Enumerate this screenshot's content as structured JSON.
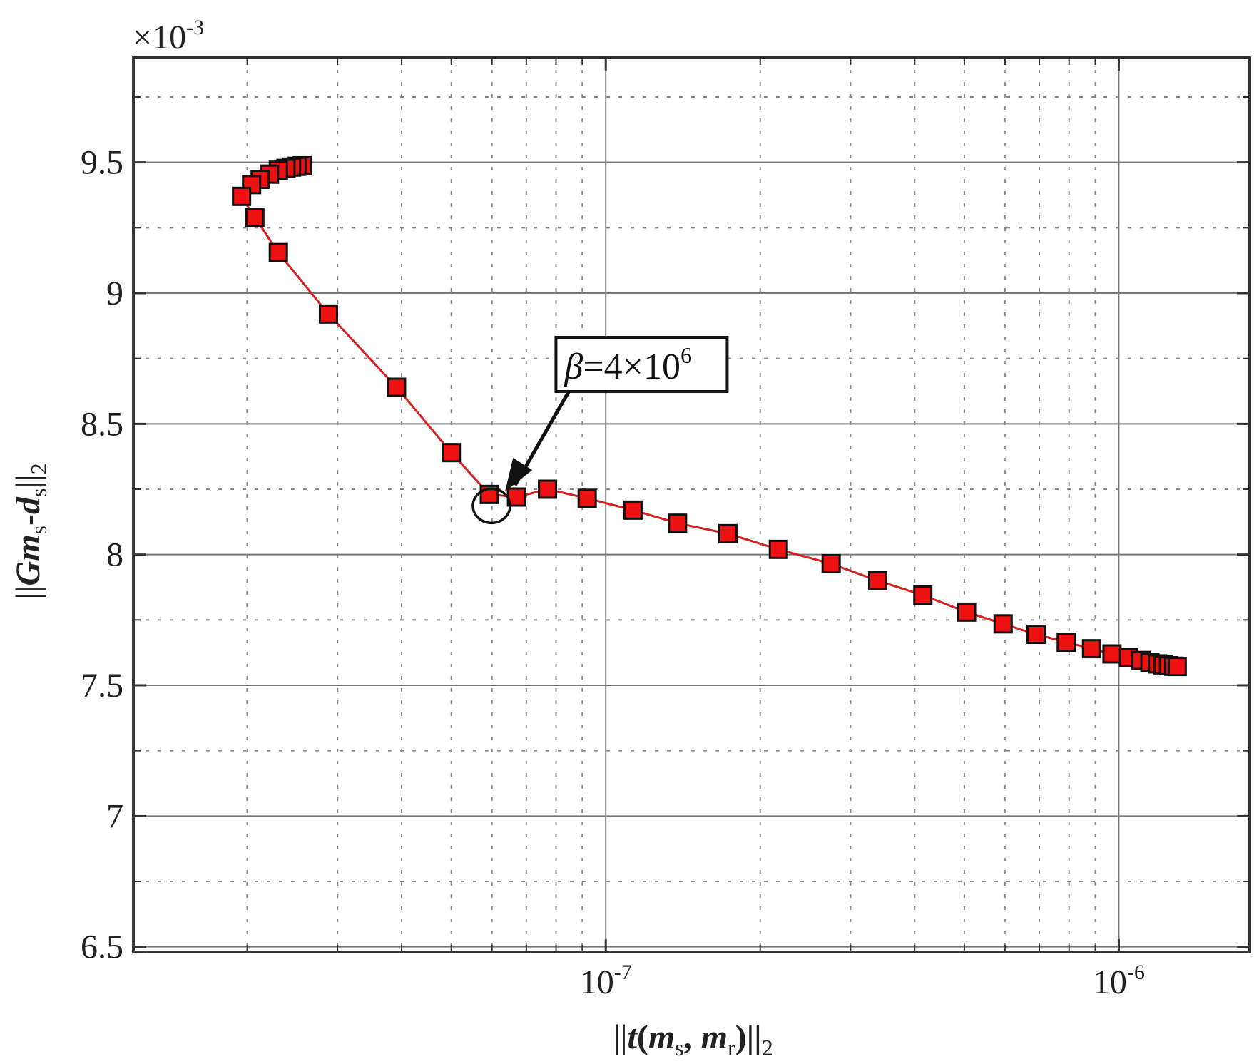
{
  "chart_data": {
    "type": "line",
    "x_scale": "log",
    "xlim": [
      1.2e-08,
      1.8e-06
    ],
    "ylim": [
      6.48,
      9.9
    ],
    "y_multiplier_label": "×10",
    "y_multiplier_exponent": "-3",
    "x_ticks": [
      {
        "value": 1e-07,
        "base": "10",
        "exp": "-7"
      },
      {
        "value": 1e-06,
        "base": "10",
        "exp": "-6"
      }
    ],
    "y_ticks": [
      6.5,
      7,
      7.5,
      8,
      8.5,
      9,
      9.5
    ],
    "grid": true,
    "xlabel": {
      "parts": [
        "||",
        "t",
        "(",
        "m",
        "s",
        ", ",
        "m",
        "r",
        ")||",
        "2"
      ]
    },
    "ylabel": {
      "parts": [
        "||",
        "G",
        "m",
        "s",
        "-",
        "d",
        "s",
        "||",
        "2"
      ]
    },
    "series": [
      {
        "line_color": "#d42020",
        "marker_color": "#ee1111",
        "marker_edge": "#111111",
        "marker": "square",
        "points": [
          {
            "x": 2.56e-08,
            "y": 9.487
          },
          {
            "x": 2.5e-08,
            "y": 9.485
          },
          {
            "x": 2.44e-08,
            "y": 9.482
          },
          {
            "x": 2.38e-08,
            "y": 9.477
          },
          {
            "x": 2.3e-08,
            "y": 9.47
          },
          {
            "x": 2.21e-08,
            "y": 9.455
          },
          {
            "x": 2.12e-08,
            "y": 9.435
          },
          {
            "x": 2.04e-08,
            "y": 9.415
          },
          {
            "x": 1.95e-08,
            "y": 9.37
          },
          {
            "x": 2.07e-08,
            "y": 9.29
          },
          {
            "x": 2.3e-08,
            "y": 9.155
          },
          {
            "x": 2.88e-08,
            "y": 8.92
          },
          {
            "x": 3.91e-08,
            "y": 8.64
          },
          {
            "x": 5e-08,
            "y": 8.39
          },
          {
            "x": 5.93e-08,
            "y": 8.23
          },
          {
            "x": 6.7e-08,
            "y": 8.22
          },
          {
            "x": 7.7e-08,
            "y": 8.25
          },
          {
            "x": 9.2e-08,
            "y": 8.215
          },
          {
            "x": 1.13e-07,
            "y": 8.17
          },
          {
            "x": 1.38e-07,
            "y": 8.12
          },
          {
            "x": 1.73e-07,
            "y": 8.08
          },
          {
            "x": 2.17e-07,
            "y": 8.02
          },
          {
            "x": 2.75e-07,
            "y": 7.965
          },
          {
            "x": 3.39e-07,
            "y": 7.9
          },
          {
            "x": 4.15e-07,
            "y": 7.845
          },
          {
            "x": 5.05e-07,
            "y": 7.78
          },
          {
            "x": 5.95e-07,
            "y": 7.735
          },
          {
            "x": 6.9e-07,
            "y": 7.695
          },
          {
            "x": 7.9e-07,
            "y": 7.665
          },
          {
            "x": 8.85e-07,
            "y": 7.64
          },
          {
            "x": 9.7e-07,
            "y": 7.62
          },
          {
            "x": 1.045e-06,
            "y": 7.605
          },
          {
            "x": 1.105e-06,
            "y": 7.595
          },
          {
            "x": 1.15e-06,
            "y": 7.588
          },
          {
            "x": 1.19e-06,
            "y": 7.582
          },
          {
            "x": 1.22e-06,
            "y": 7.578
          },
          {
            "x": 1.25e-06,
            "y": 7.575
          },
          {
            "x": 1.28e-06,
            "y": 7.573
          },
          {
            "x": 1.3e-06,
            "y": 7.572
          }
        ]
      }
    ],
    "annotations": [
      {
        "beta_symbol": "β",
        "text_rest": "=4×10",
        "exponent": "6",
        "point": {
          "x": 5.93e-08,
          "y": 8.23
        },
        "box_at": {
          "x": 8.1e-08,
          "y": 8.7
        },
        "circle_marker": true
      }
    ]
  }
}
